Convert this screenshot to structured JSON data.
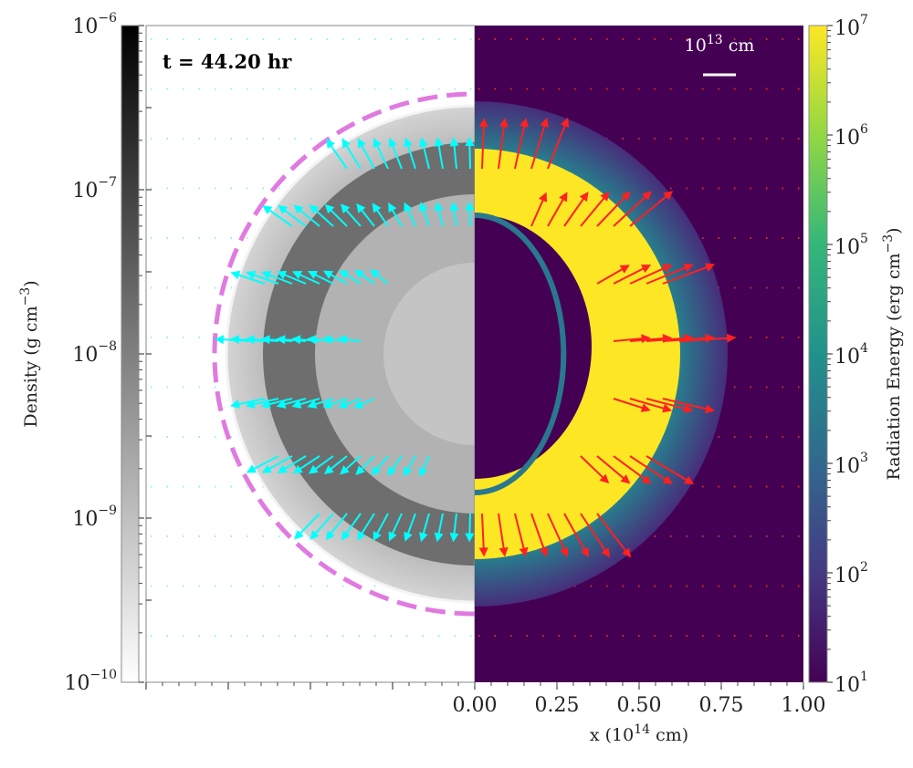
{
  "chart_data": {
    "type": "heatmap",
    "annotation": "t = 44.20 hr",
    "scale_bar": {
      "base": "10",
      "exp": "13",
      "unit": "cm"
    },
    "xlabel": {
      "pre": "x (10",
      "exp": "14",
      "post": " cm)"
    },
    "xticks": [
      "0.00",
      "0.25",
      "0.50",
      "0.75",
      "1.00"
    ],
    "xlim": [
      0,
      1.0
    ],
    "left_panel": {
      "quantity": "Density",
      "colormap": "gray_r",
      "colorbar_label": {
        "pre": "Density (g cm",
        "exp": "−3",
        "post": ")"
      },
      "colorbar_ticks": [
        {
          "base": "10",
          "exp": "−6"
        },
        {
          "base": "10",
          "exp": "−7"
        },
        {
          "base": "10",
          "exp": "−8"
        },
        {
          "base": "10",
          "exp": "−9"
        },
        {
          "base": "10",
          "exp": "−10"
        }
      ],
      "range": [
        1e-10,
        1e-06
      ],
      "log_scale": true,
      "vector_color": "#00ffff",
      "outline_color": "#e07ae0"
    },
    "right_panel": {
      "quantity": "Radiation Energy",
      "colormap": "viridis",
      "colorbar_label": {
        "pre": "Radiation Energy (erg cm",
        "exp": "−3",
        "post": ")"
      },
      "colorbar_ticks": [
        {
          "base": "10",
          "exp": "7"
        },
        {
          "base": "10",
          "exp": "6"
        },
        {
          "base": "10",
          "exp": "5"
        },
        {
          "base": "10",
          "exp": "4"
        },
        {
          "base": "10",
          "exp": "3"
        },
        {
          "base": "10",
          "exp": "2"
        },
        {
          "base": "10",
          "exp": "1"
        }
      ],
      "range": [
        10,
        10000000.0
      ],
      "log_scale": true,
      "vector_color": "#ff2020"
    }
  }
}
